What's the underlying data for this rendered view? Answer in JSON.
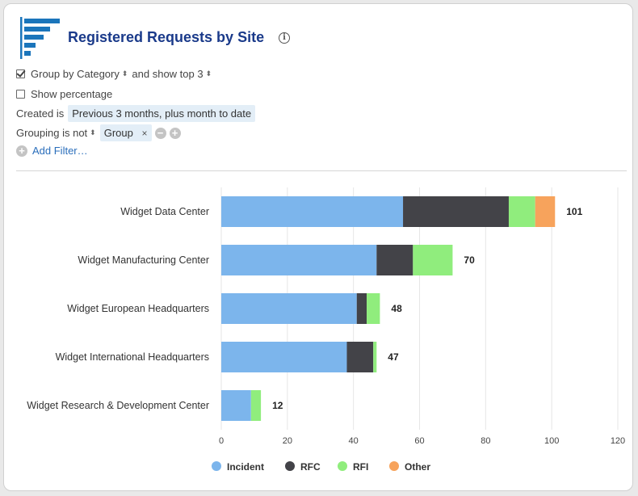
{
  "header": {
    "title": "Registered Requests by Site",
    "info_glyph": "i"
  },
  "filters": {
    "group_by_label": "Group by",
    "group_by_value": "Category",
    "show_top_label": "and show top",
    "show_top_value": "3",
    "group_by_checked": true,
    "show_percentage_label": "Show percentage",
    "show_percentage_checked": false,
    "created_label": "Created is",
    "created_value": "Previous 3 months, plus month to date",
    "grouping_label": "Grouping is not",
    "grouping_value": "Group",
    "remove_glyph": "×",
    "minus_glyph": "−",
    "plus_glyph": "+",
    "add_filter_label": "Add Filter…"
  },
  "chart_data": {
    "type": "bar",
    "orientation": "horizontal",
    "stacked": true,
    "categories": [
      "Widget Data Center",
      "Widget Manufacturing Center",
      "Widget European Headquarters",
      "Widget International Headquarters",
      "Widget Research & Development Center"
    ],
    "series": [
      {
        "name": "Incident",
        "color": "#7cb5ec",
        "values": [
          55,
          47,
          41,
          38,
          9
        ]
      },
      {
        "name": "RFC",
        "color": "#434348",
        "values": [
          32,
          11,
          3,
          8,
          0
        ]
      },
      {
        "name": "RFI",
        "color": "#90ed7d",
        "values": [
          8,
          12,
          4,
          1,
          3
        ]
      },
      {
        "name": "Other",
        "color": "#f7a35c",
        "values": [
          6,
          0,
          0,
          0,
          0
        ]
      }
    ],
    "totals": [
      101,
      70,
      48,
      47,
      12
    ],
    "xlim": [
      0,
      120
    ],
    "xticks": [
      0,
      20,
      40,
      60,
      80,
      100,
      120
    ],
    "grid": true,
    "legend_position": "bottom"
  }
}
